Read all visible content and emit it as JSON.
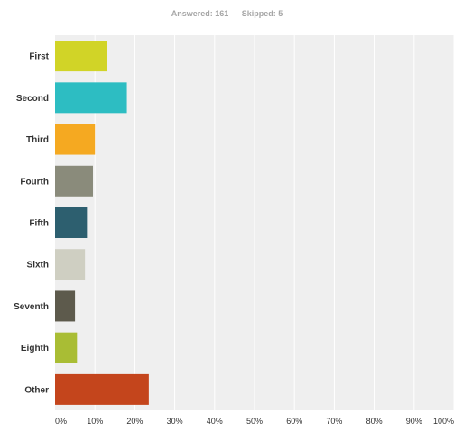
{
  "summary": {
    "answered": "Answered: 161",
    "skipped": "Skipped: 5"
  },
  "chart_data": {
    "type": "bar",
    "orientation": "horizontal",
    "categories": [
      "First",
      "Second",
      "Third",
      "Fourth",
      "Fifth",
      "Sixth",
      "Seventh",
      "Eighth",
      "Other"
    ],
    "values": [
      13,
      18,
      10,
      9.5,
      8,
      7.5,
      5,
      5.5,
      23.5
    ],
    "colors": [
      "#d1d427",
      "#2dbdc2",
      "#f5a921",
      "#8a8b7b",
      "#2d5f6f",
      "#cfcfc2",
      "#5d5a4c",
      "#a9bd34",
      "#c4451c"
    ],
    "x_ticks": [
      "0%",
      "10%",
      "20%",
      "30%",
      "40%",
      "50%",
      "60%",
      "70%",
      "80%",
      "90%",
      "100%"
    ],
    "xlim": [
      0,
      100
    ],
    "grid": true,
    "background": "#efefef",
    "title": "",
    "xlabel": "",
    "ylabel": ""
  }
}
